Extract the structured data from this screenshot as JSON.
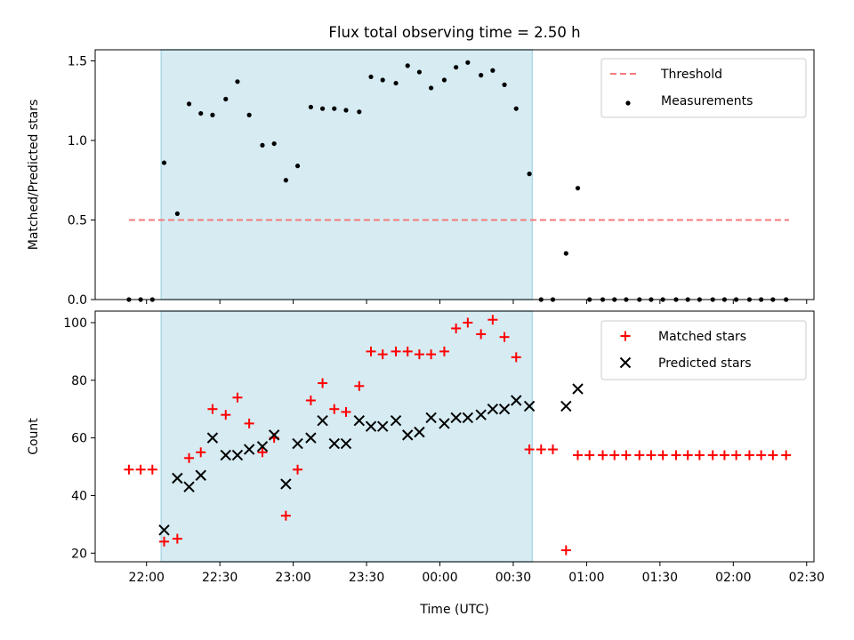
{
  "title": "Flux total observing time = 2.50 h",
  "colors": {
    "threshold": "#f47a7a",
    "measurement": "#000000",
    "matched": "#ff0000",
    "predicted": "#000000",
    "observing_band": "#add8e6"
  },
  "chart_data": [
    {
      "type": "scatter",
      "ylabel": "Matched/Predicted stars",
      "ylim": [
        0,
        1.57
      ],
      "yticks": [
        0,
        0.5,
        1.0,
        1.5
      ],
      "ytick_labels": [
        "0.0",
        "0.5",
        "1.0",
        "1.5"
      ],
      "xlim_hours": [
        -2.35,
        2.55
      ],
      "observing_window_hours": [
        -1.9,
        0.63
      ],
      "threshold": {
        "name": "Threshold",
        "value": 0.5,
        "x_range_hours": [
          -2.12,
          2.38
        ]
      },
      "legend": {
        "position": "upper-right",
        "entries": [
          "Threshold",
          "Measurements"
        ]
      },
      "series": [
        {
          "name": "Measurements",
          "marker": "dot",
          "x_hours": [
            -2.12,
            -2.04,
            -1.96,
            -1.88,
            -1.79,
            -1.71,
            -1.63,
            -1.55,
            -1.46,
            -1.38,
            -1.3,
            -1.21,
            -1.13,
            -1.05,
            -0.97,
            -0.88,
            -0.8,
            -0.72,
            -0.64,
            -0.55,
            -0.47,
            -0.39,
            -0.3,
            -0.22,
            -0.14,
            -0.06,
            0.03,
            0.11,
            0.19,
            0.28,
            0.36,
            0.44,
            0.52,
            0.61,
            0.69,
            0.77,
            0.86,
            0.94,
            1.02,
            1.11,
            1.19,
            1.27,
            1.36,
            1.44,
            1.52,
            1.61,
            1.69,
            1.77,
            1.86,
            1.94,
            2.02,
            2.11,
            2.19,
            2.27,
            2.36
          ],
          "y": [
            0,
            0,
            0,
            0.86,
            0.54,
            1.23,
            1.17,
            1.16,
            1.26,
            1.37,
            1.16,
            0.97,
            0.98,
            0.75,
            0.84,
            1.21,
            1.2,
            1.2,
            1.19,
            1.18,
            1.4,
            1.38,
            1.36,
            1.47,
            1.43,
            1.33,
            1.38,
            1.46,
            1.49,
            1.41,
            1.44,
            1.35,
            1.2,
            0.79,
            0,
            0,
            0.29,
            0.7,
            0,
            0,
            0,
            0,
            0,
            0,
            0,
            0,
            0,
            0,
            0,
            0,
            0,
            0,
            0,
            0,
            0
          ]
        }
      ]
    },
    {
      "type": "scatter",
      "xlabel": "Time (UTC)",
      "ylabel": "Count",
      "ylim": [
        17,
        104
      ],
      "yticks": [
        20,
        40,
        60,
        80,
        100
      ],
      "ytick_labels": [
        "20",
        "40",
        "60",
        "80",
        "100"
      ],
      "xlim_hours": [
        -2.35,
        2.55
      ],
      "xticks_hours": [
        -2.0,
        -1.5,
        -1.0,
        -0.5,
        0,
        0.5,
        1.0,
        1.5,
        2.0,
        2.5
      ],
      "xtick_labels": [
        "22:00",
        "22:30",
        "23:00",
        "23:30",
        "00:00",
        "00:30",
        "01:00",
        "01:30",
        "02:00",
        "02:30"
      ],
      "observing_window_hours": [
        -1.9,
        0.63
      ],
      "legend": {
        "position": "upper-right",
        "entries": [
          "Matched stars",
          "Predicted stars"
        ]
      },
      "series": [
        {
          "name": "Matched stars",
          "marker": "plus",
          "x_hours": [
            -2.12,
            -2.04,
            -1.96,
            -1.88,
            -1.79,
            -1.71,
            -1.63,
            -1.55,
            -1.46,
            -1.38,
            -1.3,
            -1.21,
            -1.13,
            -1.05,
            -0.97,
            -0.88,
            -0.8,
            -0.72,
            -0.64,
            -0.55,
            -0.47,
            -0.39,
            -0.3,
            -0.22,
            -0.14,
            -0.06,
            0.03,
            0.11,
            0.19,
            0.28,
            0.36,
            0.44,
            0.52,
            0.61,
            0.69,
            0.77,
            0.86,
            0.94,
            1.02,
            1.11,
            1.19,
            1.27,
            1.36,
            1.44,
            1.52,
            1.61,
            1.69,
            1.77,
            1.86,
            1.94,
            2.02,
            2.11,
            2.19,
            2.27,
            2.36
          ],
          "y": [
            49,
            49,
            49,
            24,
            25,
            53,
            55,
            70,
            68,
            74,
            65,
            55,
            60,
            33,
            49,
            73,
            79,
            70,
            69,
            78,
            90,
            89,
            90,
            90,
            89,
            89,
            90,
            98,
            100,
            96,
            101,
            95,
            88,
            56,
            56,
            56,
            21,
            54,
            54,
            54,
            54,
            54,
            54,
            54,
            54,
            54,
            54,
            54,
            54,
            54,
            54,
            54,
            54,
            54,
            54
          ]
        },
        {
          "name": "Predicted stars",
          "marker": "x",
          "x_hours": [
            -1.88,
            -1.79,
            -1.71,
            -1.63,
            -1.55,
            -1.46,
            -1.38,
            -1.3,
            -1.21,
            -1.13,
            -1.05,
            -0.97,
            -0.88,
            -0.8,
            -0.72,
            -0.64,
            -0.55,
            -0.47,
            -0.39,
            -0.3,
            -0.22,
            -0.14,
            -0.06,
            0.03,
            0.11,
            0.19,
            0.28,
            0.36,
            0.44,
            0.52,
            0.61,
            0.86,
            0.94
          ],
          "y": [
            28,
            46,
            43,
            47,
            60,
            54,
            54,
            56,
            57,
            61,
            44,
            58,
            60,
            66,
            58,
            58,
            66,
            64,
            64,
            66,
            61,
            62,
            67,
            65,
            67,
            67,
            68,
            70,
            70,
            73,
            71,
            71,
            77
          ]
        }
      ]
    }
  ]
}
